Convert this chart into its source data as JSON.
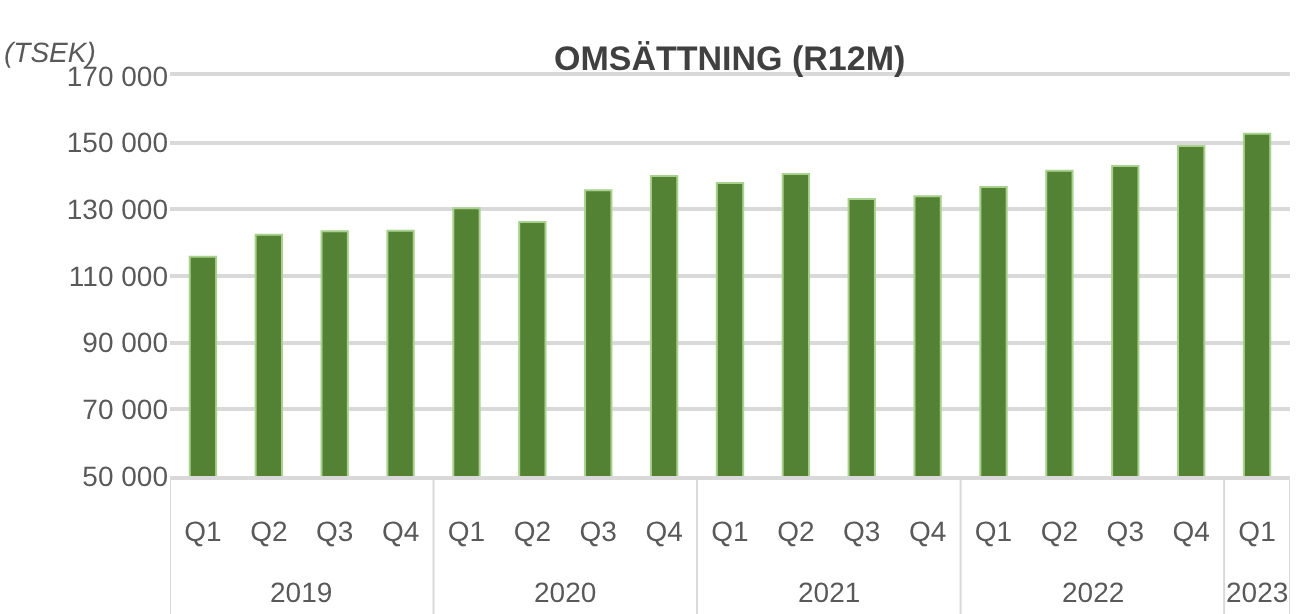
{
  "chart_data": {
    "type": "bar",
    "title": "OMSÄTTNING (R12M)",
    "ylabel": "(TSEK)",
    "categories": [
      "Q1",
      "Q2",
      "Q3",
      "Q4",
      "Q1",
      "Q2",
      "Q3",
      "Q4",
      "Q1",
      "Q2",
      "Q3",
      "Q4",
      "Q1",
      "Q2",
      "Q3",
      "Q4",
      "Q1"
    ],
    "values": [
      115800,
      122400,
      123400,
      123600,
      130300,
      126200,
      135700,
      140000,
      137900,
      140600,
      133100,
      133900,
      136700,
      141600,
      143000,
      149000,
      152700
    ],
    "color": "#548235",
    "ylim": [
      50000,
      170000
    ],
    "yticks": [
      {
        "value": 50000,
        "label": "50 000"
      },
      {
        "value": 70000,
        "label": "70 000"
      },
      {
        "value": 90000,
        "label": "90 000"
      },
      {
        "value": 110000,
        "label": "110 000"
      },
      {
        "value": 130000,
        "label": "130 000"
      },
      {
        "value": 150000,
        "label": "150 000"
      },
      {
        "value": 170000,
        "label": "170 000"
      }
    ],
    "grid": "y",
    "annotations": [
      "2019",
      "2020",
      "2021",
      "2022",
      "2023"
    ]
  }
}
